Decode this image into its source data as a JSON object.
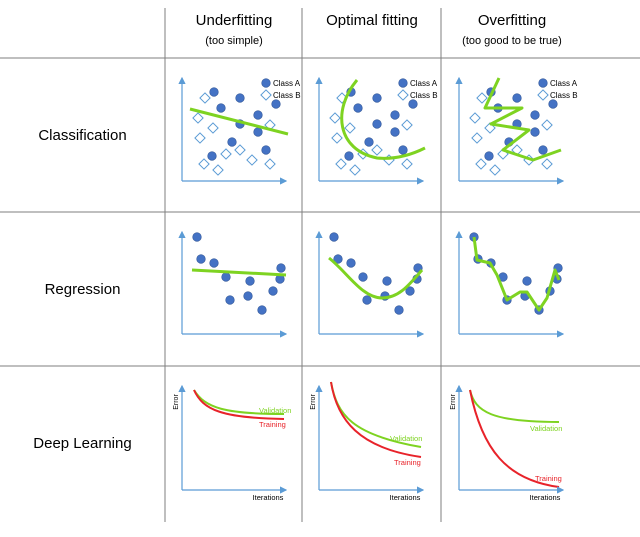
{
  "columns": [
    {
      "title": "Underfitting",
      "subtitle": "(too simple)"
    },
    {
      "title": "Optimal fitting",
      "subtitle": ""
    },
    {
      "title": "Overfitting",
      "subtitle": "(too good to be true)"
    }
  ],
  "rows": [
    "Classification",
    "Regression",
    "Deep Learning"
  ],
  "legend": {
    "class_a": "Class A",
    "class_b": "Class B"
  },
  "deep_learning": {
    "y_axis": "Error",
    "x_axis": "Iterations",
    "validation": "Validation",
    "training": "Training"
  },
  "colors": {
    "point": "#4472c4",
    "point_stroke": "#2f5597",
    "axis": "#5b9bd5",
    "fit": "#7ed321",
    "validation": "#7ed321",
    "training": "#e8232a",
    "grid": "#7f7f7f"
  }
}
